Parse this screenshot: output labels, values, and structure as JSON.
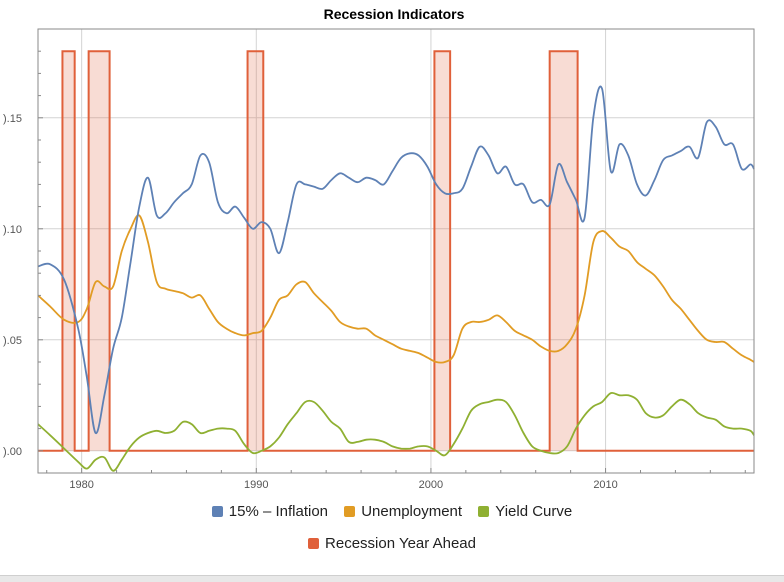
{
  "chart_data": {
    "type": "line",
    "title": "Recession Indicators",
    "xlabel": "",
    "ylabel": "",
    "xlim": [
      1977.5,
      2018.5
    ],
    "ylim": [
      -0.01,
      0.19
    ],
    "x_ticks": [
      1980,
      1990,
      2000,
      2010
    ],
    "x_tick_labels": [
      "1980",
      "1990",
      "2000",
      "2010"
    ],
    "y_ticks": [
      0.0,
      0.05,
      0.1,
      0.15
    ],
    "y_tick_labels": [
      ").00",
      ").05",
      ").10",
      ").15"
    ],
    "grid": true,
    "legend_position": "bottom",
    "series": [
      {
        "name": "15% – Inflation",
        "color": "#5e81b5",
        "x": [
          1977.5,
          1978.2,
          1979,
          1979.8,
          1980.3,
          1980.8,
          1981.3,
          1981.8,
          1982.3,
          1982.8,
          1983.3,
          1983.8,
          1984.3,
          1984.8,
          1985.3,
          1985.8,
          1986.3,
          1986.8,
          1987.3,
          1987.8,
          1988.3,
          1988.8,
          1989.3,
          1989.8,
          1990.3,
          1990.8,
          1991.3,
          1991.8,
          1992.3,
          1992.8,
          1993.3,
          1993.8,
          1994.3,
          1994.8,
          1995.3,
          1995.8,
          1996.3,
          1996.8,
          1997.3,
          1997.8,
          1998.3,
          1998.8,
          1999.3,
          1999.8,
          2000.3,
          2000.8,
          2001.3,
          2001.8,
          2002.3,
          2002.8,
          2003.3,
          2003.8,
          2004.3,
          2004.8,
          2005.3,
          2005.8,
          2006.3,
          2006.8,
          2007.3,
          2007.8,
          2008.3,
          2008.8,
          2009.3,
          2009.8,
          2010.3,
          2010.8,
          2011.3,
          2011.8,
          2012.3,
          2012.8,
          2013.3,
          2013.8,
          2014.3,
          2014.8,
          2015.3,
          2015.8,
          2016.3,
          2016.8,
          2017.3,
          2017.8,
          2018.3
        ],
        "y": [
          0.083,
          0.084,
          0.077,
          0.055,
          0.033,
          0.008,
          0.025,
          0.046,
          0.06,
          0.085,
          0.11,
          0.123,
          0.106,
          0.107,
          0.112,
          0.116,
          0.12,
          0.133,
          0.13,
          0.112,
          0.107,
          0.11,
          0.105,
          0.1,
          0.103,
          0.1,
          0.089,
          0.103,
          0.12,
          0.12,
          0.119,
          0.118,
          0.122,
          0.125,
          0.123,
          0.121,
          0.123,
          0.122,
          0.12,
          0.126,
          0.132,
          0.134,
          0.133,
          0.128,
          0.12,
          0.116,
          0.116,
          0.118,
          0.128,
          0.137,
          0.133,
          0.125,
          0.128,
          0.12,
          0.12,
          0.112,
          0.113,
          0.111,
          0.129,
          0.121,
          0.113,
          0.105,
          0.15,
          0.163,
          0.126,
          0.138,
          0.133,
          0.12,
          0.115,
          0.122,
          0.131,
          0.133,
          0.135,
          0.137,
          0.132,
          0.148,
          0.146,
          0.138,
          0.138,
          0.127,
          0.129
        ],
        "final": [
          2018.5,
          0.127
        ]
      },
      {
        "name": "Unemployment",
        "color": "#e19c24",
        "x": [
          1977.5,
          1978.2,
          1979,
          1979.8,
          1980.3,
          1980.8,
          1981.3,
          1981.8,
          1982.3,
          1982.8,
          1983.3,
          1983.8,
          1984.3,
          1984.8,
          1985.3,
          1985.8,
          1986.3,
          1986.8,
          1987.3,
          1987.8,
          1988.3,
          1988.8,
          1989.3,
          1989.8,
          1990.3,
          1990.8,
          1991.3,
          1991.8,
          1992.3,
          1992.8,
          1993.3,
          1993.8,
          1994.3,
          1994.8,
          1995.3,
          1995.8,
          1996.3,
          1996.8,
          1997.3,
          1997.8,
          1998.3,
          1998.8,
          1999.3,
          1999.8,
          2000.3,
          2000.8,
          2001.3,
          2001.8,
          2002.3,
          2002.8,
          2003.3,
          2003.8,
          2004.3,
          2004.8,
          2005.3,
          2005.8,
          2006.3,
          2006.8,
          2007.3,
          2007.8,
          2008.3,
          2008.8,
          2009.3,
          2009.8,
          2010.3,
          2010.8,
          2011.3,
          2011.8,
          2012.3,
          2012.8,
          2013.3,
          2013.8,
          2014.3,
          2014.8,
          2015.3,
          2015.8,
          2016.3,
          2016.8,
          2017.3,
          2017.8,
          2018.3
        ],
        "y": [
          0.07,
          0.065,
          0.059,
          0.058,
          0.064,
          0.076,
          0.074,
          0.074,
          0.09,
          0.1,
          0.106,
          0.094,
          0.076,
          0.073,
          0.072,
          0.071,
          0.069,
          0.07,
          0.064,
          0.058,
          0.055,
          0.053,
          0.052,
          0.053,
          0.054,
          0.06,
          0.068,
          0.07,
          0.075,
          0.076,
          0.071,
          0.067,
          0.063,
          0.058,
          0.056,
          0.055,
          0.055,
          0.052,
          0.05,
          0.048,
          0.046,
          0.045,
          0.044,
          0.042,
          0.04,
          0.04,
          0.043,
          0.055,
          0.058,
          0.058,
          0.059,
          0.061,
          0.058,
          0.054,
          0.052,
          0.05,
          0.047,
          0.045,
          0.045,
          0.048,
          0.055,
          0.07,
          0.094,
          0.099,
          0.096,
          0.092,
          0.09,
          0.085,
          0.082,
          0.079,
          0.074,
          0.068,
          0.064,
          0.059,
          0.054,
          0.05,
          0.049,
          0.049,
          0.046,
          0.043,
          0.041
        ],
        "final": [
          2018.5,
          0.04
        ]
      },
      {
        "name": "Yield Curve",
        "color": "#8fb032",
        "x": [
          1977.5,
          1978.2,
          1979,
          1979.8,
          1980.3,
          1980.8,
          1981.3,
          1981.8,
          1982.3,
          1982.8,
          1983.3,
          1983.8,
          1984.3,
          1984.8,
          1985.3,
          1985.8,
          1986.3,
          1986.8,
          1987.3,
          1987.8,
          1988.3,
          1988.8,
          1989.3,
          1989.8,
          1990.3,
          1990.8,
          1991.3,
          1991.8,
          1992.3,
          1992.8,
          1993.3,
          1993.8,
          1994.3,
          1994.8,
          1995.3,
          1995.8,
          1996.3,
          1996.8,
          1997.3,
          1997.8,
          1998.3,
          1998.8,
          1999.3,
          1999.8,
          2000.3,
          2000.8,
          2001.3,
          2001.8,
          2002.3,
          2002.8,
          2003.3,
          2003.8,
          2004.3,
          2004.8,
          2005.3,
          2005.8,
          2006.3,
          2006.8,
          2007.3,
          2007.8,
          2008.3,
          2008.8,
          2009.3,
          2009.8,
          2010.3,
          2010.8,
          2011.3,
          2011.8,
          2012.3,
          2012.8,
          2013.3,
          2013.8,
          2014.3,
          2014.8,
          2015.3,
          2015.8,
          2016.3,
          2016.8,
          2017.3,
          2017.8,
          2018.3
        ],
        "y": [
          0.012,
          0.007,
          0.001,
          -0.005,
          -0.008,
          -0.004,
          -0.003,
          -0.009,
          -0.004,
          0.002,
          0.006,
          0.008,
          0.009,
          0.008,
          0.009,
          0.013,
          0.012,
          0.008,
          0.009,
          0.01,
          0.01,
          0.009,
          0.003,
          -0.001,
          0.0,
          0.002,
          0.006,
          0.012,
          0.017,
          0.022,
          0.022,
          0.018,
          0.013,
          0.01,
          0.004,
          0.004,
          0.005,
          0.005,
          0.004,
          0.002,
          0.001,
          0.001,
          0.002,
          0.002,
          0.0,
          -0.002,
          0.003,
          0.01,
          0.018,
          0.021,
          0.022,
          0.023,
          0.022,
          0.016,
          0.008,
          0.002,
          0.0,
          -0.001,
          -0.001,
          0.002,
          0.01,
          0.016,
          0.02,
          0.022,
          0.026,
          0.025,
          0.025,
          0.023,
          0.017,
          0.015,
          0.016,
          0.02,
          0.023,
          0.021,
          0.017,
          0.015,
          0.014,
          0.011,
          0.01,
          0.01,
          0.009
        ],
        "final": [
          2018.5,
          0.007
        ]
      },
      {
        "name": "Recession Year Ahead",
        "color": "#e0603a",
        "baseline": 0.0,
        "peak": 0.18,
        "periods": [
          [
            1978.9,
            1979.6
          ],
          [
            1980.4,
            1981.6
          ],
          [
            1989.5,
            1990.4
          ],
          [
            2000.2,
            2001.1
          ],
          [
            2006.8,
            2008.4
          ]
        ]
      }
    ]
  }
}
